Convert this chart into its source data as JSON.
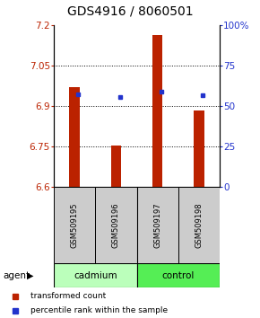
{
  "title": "GDS4916 / 8060501",
  "samples": [
    "GSM509195",
    "GSM509196",
    "GSM509197",
    "GSM509198"
  ],
  "bar_values": [
    6.97,
    6.755,
    7.165,
    6.885
  ],
  "blue_dot_values": [
    6.945,
    6.935,
    6.955,
    6.94
  ],
  "bar_color": "#bb2200",
  "dot_color": "#2233cc",
  "ymin": 6.6,
  "ymax": 7.2,
  "yticks_left": [
    6.6,
    6.75,
    6.9,
    7.05,
    7.2
  ],
  "yticks_right": [
    0,
    25,
    50,
    75,
    100
  ],
  "ytick_labels_left": [
    "6.6",
    "6.75",
    "6.9",
    "7.05",
    "7.2"
  ],
  "ytick_labels_right": [
    "0",
    "25",
    "50",
    "75",
    "100%"
  ],
  "agent_label": "agent",
  "legend_items": [
    {
      "label": "transformed count",
      "color": "#bb2200"
    },
    {
      "label": "percentile rank within the sample",
      "color": "#2233cc"
    }
  ],
  "bar_width": 0.25,
  "baseline": 6.6,
  "title_fontsize": 10,
  "axis_fontsize": 7.5,
  "group_colors": [
    "#bbffbb",
    "#55ee55"
  ],
  "sample_box_color": "#cccccc",
  "grid_ticks": [
    6.75,
    6.9,
    7.05
  ]
}
